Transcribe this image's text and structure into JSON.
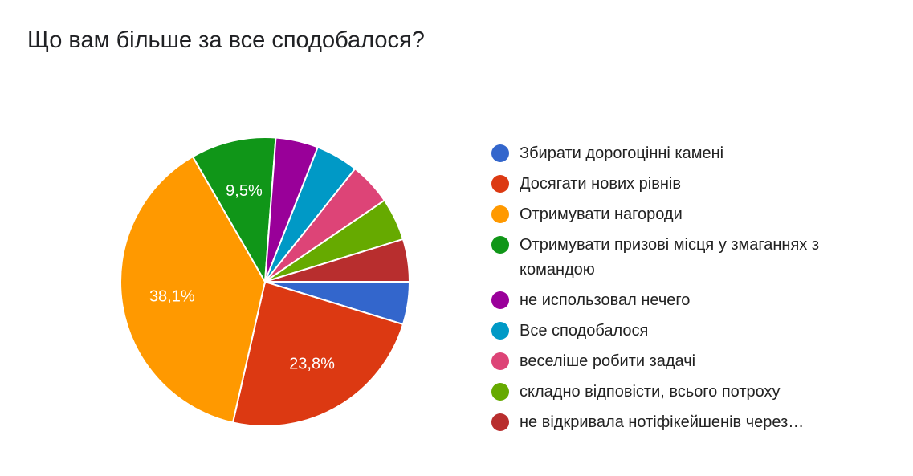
{
  "title": "Що вам більше за все сподобалося?",
  "chart_data": {
    "type": "pie",
    "title": "Що вам більше за все сподобалося?",
    "legend_position": "right",
    "start_angle_deg_clockwise_from_top": 90,
    "slices": [
      {
        "label": "Збирати дорогоцінні камені",
        "value": 1,
        "percent_label": "",
        "color": "#3366cc"
      },
      {
        "label": "Досягати нових рівнів",
        "value": 5,
        "percent_label": "23,8%",
        "color": "#dc3912"
      },
      {
        "label": "Отримувати нагороди",
        "value": 8,
        "percent_label": "38,1%",
        "color": "#ff9900"
      },
      {
        "label": "Отримувати призові місця у змаганнях з командою",
        "value": 2,
        "percent_label": "9,5%",
        "color": "#109618"
      },
      {
        "label": "не использовал нечего",
        "value": 1,
        "percent_label": "",
        "color": "#990099"
      },
      {
        "label": "Все сподобалося",
        "value": 1,
        "percent_label": "",
        "color": "#0099c6"
      },
      {
        "label": "веселіше робити задачі",
        "value": 1,
        "percent_label": "",
        "color": "#dd4477"
      },
      {
        "label": "складно відповісти, всього потроху",
        "value": 1,
        "percent_label": "",
        "color": "#66aa00"
      },
      {
        "label": "не відкривала нотіфікейшенів через…",
        "value": 1,
        "percent_label": "",
        "color": "#b82e2e"
      }
    ]
  }
}
